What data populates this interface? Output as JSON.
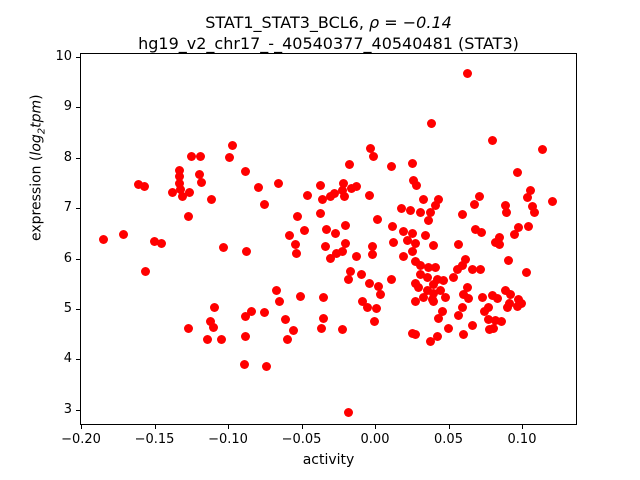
{
  "chart_data": {
    "type": "scatter",
    "title_line1_prefix": "STAT1_STAT3_BCL6, ",
    "title_line1_math": "ρ = −0.14",
    "title_line2": "hg19_v2_chr17_-_40540377_40540481 (STAT3)",
    "xlabel": "activity",
    "ylabel_prefix": "expression (",
    "ylabel_math_log": "log",
    "ylabel_math_sub": "2",
    "ylabel_math_word": "tpm",
    "ylabel_suffix": ")",
    "marker_color": "#ff0000",
    "axis_color": "#000000",
    "grid": false,
    "legend": null,
    "xlim": [
      -0.2007,
      0.1374
    ],
    "ylim": [
      2.7,
      10.08
    ],
    "xticks": {
      "values": [
        -0.2,
        -0.15,
        -0.1,
        -0.05,
        0.0,
        0.05,
        0.1
      ],
      "labels": [
        "−0.20",
        "−0.15",
        "−0.10",
        "−0.05",
        "0.00",
        "0.05",
        "0.10"
      ]
    },
    "yticks": {
      "values": [
        3,
        4,
        5,
        6,
        7,
        8,
        9,
        10
      ],
      "labels": [
        "3",
        "4",
        "5",
        "6",
        "7",
        "8",
        "9",
        "10"
      ]
    },
    "points": [
      [
        -0.1246,
        8.03
      ],
      [
        -0.1187,
        8.02
      ],
      [
        -0.0968,
        8.24
      ],
      [
        -0.0991,
        8.0
      ],
      [
        -0.1333,
        7.75
      ],
      [
        -0.1327,
        7.63
      ],
      [
        -0.1195,
        7.67
      ],
      [
        -0.1607,
        7.47
      ],
      [
        -0.157,
        7.43
      ],
      [
        -0.1331,
        7.49
      ],
      [
        -0.118,
        7.52
      ],
      [
        -0.0884,
        7.73
      ],
      [
        -0.0177,
        7.86
      ],
      [
        -0.0034,
        8.19
      ],
      [
        -0.0012,
        8.03
      ],
      [
        0.0115,
        7.83
      ],
      [
        0.0255,
        7.89
      ],
      [
        0.0259,
        7.56
      ],
      [
        0.0279,
        7.46
      ],
      [
        -0.0656,
        7.49
      ],
      [
        -0.0212,
        7.49
      ],
      [
        0.0626,
        9.68
      ],
      [
        0.0381,
        8.69
      ],
      [
        0.0796,
        8.35
      ],
      [
        0.1141,
        8.16
      ],
      [
        0.0967,
        7.7
      ],
      [
        -0.1377,
        7.32
      ],
      [
        -0.132,
        7.37
      ],
      [
        -0.1259,
        7.32
      ],
      [
        -0.1313,
        7.23
      ],
      [
        -0.1112,
        7.17
      ],
      [
        -0.1269,
        6.83
      ],
      [
        -0.185,
        6.38
      ],
      [
        -0.1712,
        6.48
      ],
      [
        -0.1503,
        6.35
      ],
      [
        -0.1452,
        6.3
      ],
      [
        -0.1563,
        5.74
      ],
      [
        -0.1032,
        6.22
      ],
      [
        -0.1095,
        5.03
      ],
      [
        -0.0871,
        6.14
      ],
      [
        -0.0793,
        7.41
      ],
      [
        -0.0755,
        7.07
      ],
      [
        -0.0526,
        6.83
      ],
      [
        -0.0456,
        7.26
      ],
      [
        -0.0374,
        7.45
      ],
      [
        -0.0354,
        7.18
      ],
      [
        -0.0277,
        7.3
      ],
      [
        -0.0304,
        7.23
      ],
      [
        -0.0221,
        7.35
      ],
      [
        -0.021,
        7.24
      ],
      [
        -0.0159,
        7.4
      ],
      [
        -0.0129,
        7.44
      ],
      [
        -0.0037,
        7.25
      ],
      [
        -0.0374,
        6.89
      ],
      [
        -0.0199,
        6.66
      ],
      [
        0.0014,
        6.78
      ],
      [
        0.012,
        6.63
      ],
      [
        0.018,
        7.0
      ],
      [
        0.0241,
        6.96
      ],
      [
        -0.0583,
        6.46
      ],
      [
        -0.048,
        6.55
      ],
      [
        -0.0333,
        6.57
      ],
      [
        -0.0267,
        6.5
      ],
      [
        -0.0203,
        6.3
      ],
      [
        -0.0265,
        6.11
      ],
      [
        -0.0218,
        6.14
      ],
      [
        -0.0539,
        6.29
      ],
      [
        -0.0533,
        6.1
      ],
      [
        -0.0338,
        6.25
      ],
      [
        -0.0303,
        6.0
      ],
      [
        -0.0124,
        6.05
      ],
      [
        -0.0014,
        6.09
      ],
      [
        -0.0016,
        6.25
      ],
      [
        0.0124,
        6.32
      ],
      [
        0.0197,
        6.05
      ],
      [
        -0.0165,
        5.74
      ],
      [
        -0.009,
        5.68
      ],
      [
        -0.0039,
        5.51
      ],
      [
        0.0022,
        5.45
      ],
      [
        0.0114,
        5.58
      ],
      [
        -0.0178,
        5.59
      ],
      [
        -0.0088,
        5.15
      ],
      [
        -0.0048,
        5.03
      ],
      [
        0.0009,
        5.01
      ],
      [
        0.0034,
        5.28
      ],
      [
        -0.051,
        5.25
      ],
      [
        -0.035,
        5.23
      ],
      [
        -0.0837,
        4.96
      ],
      [
        -0.0752,
        4.94
      ],
      [
        -0.065,
        5.15
      ],
      [
        -0.0672,
        5.36
      ],
      [
        -0.0609,
        4.79
      ],
      [
        -0.0553,
        4.57
      ],
      [
        -0.0594,
        4.39
      ],
      [
        -0.0878,
        4.86
      ],
      [
        -0.0352,
        4.82
      ],
      [
        -0.0361,
        4.61
      ],
      [
        -0.0224,
        4.6
      ],
      [
        -0.0879,
        4.46
      ],
      [
        -0.0737,
        3.86
      ],
      [
        -0.0888,
        3.9
      ],
      [
        -0.0178,
        2.95
      ],
      [
        -0.0002,
        4.76
      ],
      [
        -0.127,
        4.61
      ],
      [
        -0.1122,
        4.75
      ],
      [
        -0.1099,
        4.63
      ],
      [
        -0.1138,
        4.4
      ],
      [
        -0.1043,
        4.39
      ],
      [
        0.0331,
        7.17
      ],
      [
        0.0431,
        7.17
      ],
      [
        0.0412,
        7.05
      ],
      [
        0.038,
        6.91
      ],
      [
        0.0306,
        6.92
      ],
      [
        0.0362,
        6.76
      ],
      [
        0.0197,
        6.53
      ],
      [
        0.0255,
        6.5
      ],
      [
        0.034,
        6.45
      ],
      [
        0.0218,
        6.36
      ],
      [
        0.0594,
        6.88
      ],
      [
        0.0677,
        7.08
      ],
      [
        0.0711,
        7.24
      ],
      [
        0.089,
        7.06
      ],
      [
        0.0894,
        6.92
      ],
      [
        0.1061,
        7.36
      ],
      [
        0.1034,
        7.21
      ],
      [
        0.1207,
        7.13
      ],
      [
        0.107,
        7.04
      ],
      [
        0.1082,
        6.92
      ],
      [
        0.0973,
        6.61
      ],
      [
        0.1044,
        6.64
      ],
      [
        0.0946,
        6.47
      ],
      [
        0.0845,
        6.41
      ],
      [
        0.0848,
        6.29
      ],
      [
        0.082,
        6.32
      ],
      [
        0.0684,
        6.58
      ],
      [
        0.0727,
        6.52
      ],
      [
        0.0569,
        6.29
      ],
      [
        0.0272,
        6.3
      ],
      [
        0.0397,
        6.27
      ],
      [
        0.0252,
        6.15
      ],
      [
        0.0274,
        5.95
      ],
      [
        0.031,
        5.86
      ],
      [
        0.0364,
        5.82
      ],
      [
        0.0414,
        5.82
      ],
      [
        0.0308,
        5.69
      ],
      [
        0.0354,
        5.62
      ],
      [
        0.0422,
        5.59
      ],
      [
        0.0467,
        5.56
      ],
      [
        0.0399,
        5.49
      ],
      [
        0.0272,
        5.51
      ],
      [
        0.0297,
        5.43
      ],
      [
        0.0354,
        5.37
      ],
      [
        0.0444,
        5.36
      ],
      [
        0.0397,
        5.31
      ],
      [
        0.0331,
        5.23
      ],
      [
        0.0388,
        5.19
      ],
      [
        0.0478,
        5.23
      ],
      [
        0.0272,
        5.15
      ],
      [
        0.0397,
        5.15
      ],
      [
        0.0906,
        5.96
      ],
      [
        0.1029,
        5.72
      ],
      [
        0.0614,
        5.99
      ],
      [
        0.0592,
        5.86
      ],
      [
        0.0558,
        5.79
      ],
      [
        0.066,
        5.79
      ],
      [
        0.0716,
        5.79
      ],
      [
        0.0535,
        5.62
      ],
      [
        0.0626,
        5.43
      ],
      [
        0.0603,
        5.29
      ],
      [
        0.0637,
        5.2
      ],
      [
        0.0728,
        5.23
      ],
      [
        0.0796,
        5.26
      ],
      [
        0.083,
        5.2
      ],
      [
        0.0886,
        5.36
      ],
      [
        0.092,
        5.29
      ],
      [
        0.0975,
        5.18
      ],
      [
        0.0999,
        5.11
      ],
      [
        0.0918,
        5.11
      ],
      [
        0.0252,
        4.52
      ],
      [
        0.0274,
        4.5
      ],
      [
        0.0376,
        4.35
      ],
      [
        0.0422,
        4.45
      ],
      [
        0.0456,
        4.96
      ],
      [
        0.0433,
        4.82
      ],
      [
        0.0501,
        4.62
      ],
      [
        0.0569,
        4.88
      ],
      [
        0.0592,
        5.03
      ],
      [
        0.0603,
        4.5
      ],
      [
        0.0665,
        4.67
      ],
      [
        0.0746,
        4.95
      ],
      [
        0.0769,
        5.03
      ],
      [
        0.0773,
        4.8
      ],
      [
        0.0818,
        4.78
      ],
      [
        0.0778,
        4.59
      ],
      [
        0.0807,
        4.61
      ],
      [
        0.0859,
        4.76
      ],
      [
        0.0898,
        5.03
      ],
      [
        0.0966,
        5.05
      ]
    ]
  }
}
